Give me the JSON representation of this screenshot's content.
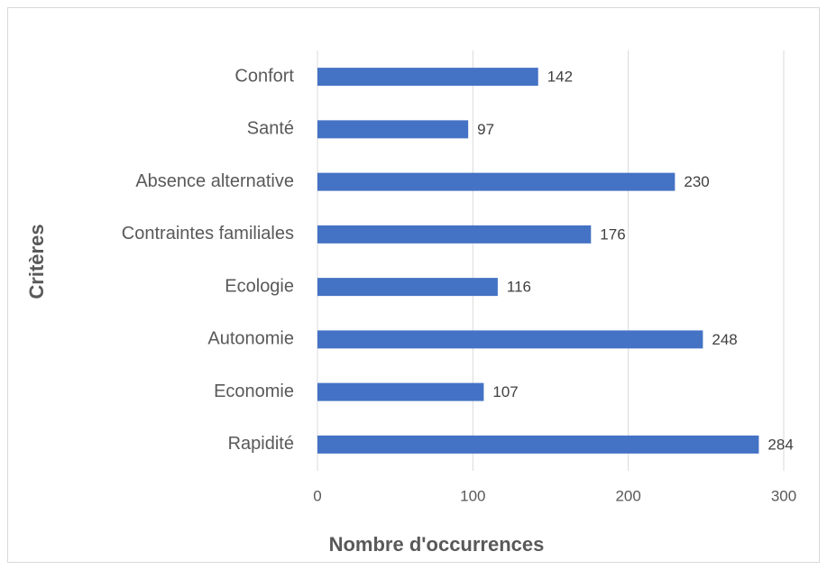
{
  "chart_data": {
    "type": "bar",
    "orientation": "horizontal",
    "categories": [
      "Confort",
      "Santé",
      "Absence alternative",
      "Contraintes familiales",
      "Ecologie",
      "Autonomie",
      "Economie",
      "Rapidité"
    ],
    "values": [
      142,
      97,
      230,
      176,
      116,
      248,
      107,
      284
    ],
    "color": "#4472c4",
    "xlim": [
      0,
      300
    ],
    "xticks": [
      0,
      100,
      200,
      300
    ],
    "grid": true,
    "xlabel": "Nombre d'occurrences",
    "ylabel": "Critères"
  }
}
